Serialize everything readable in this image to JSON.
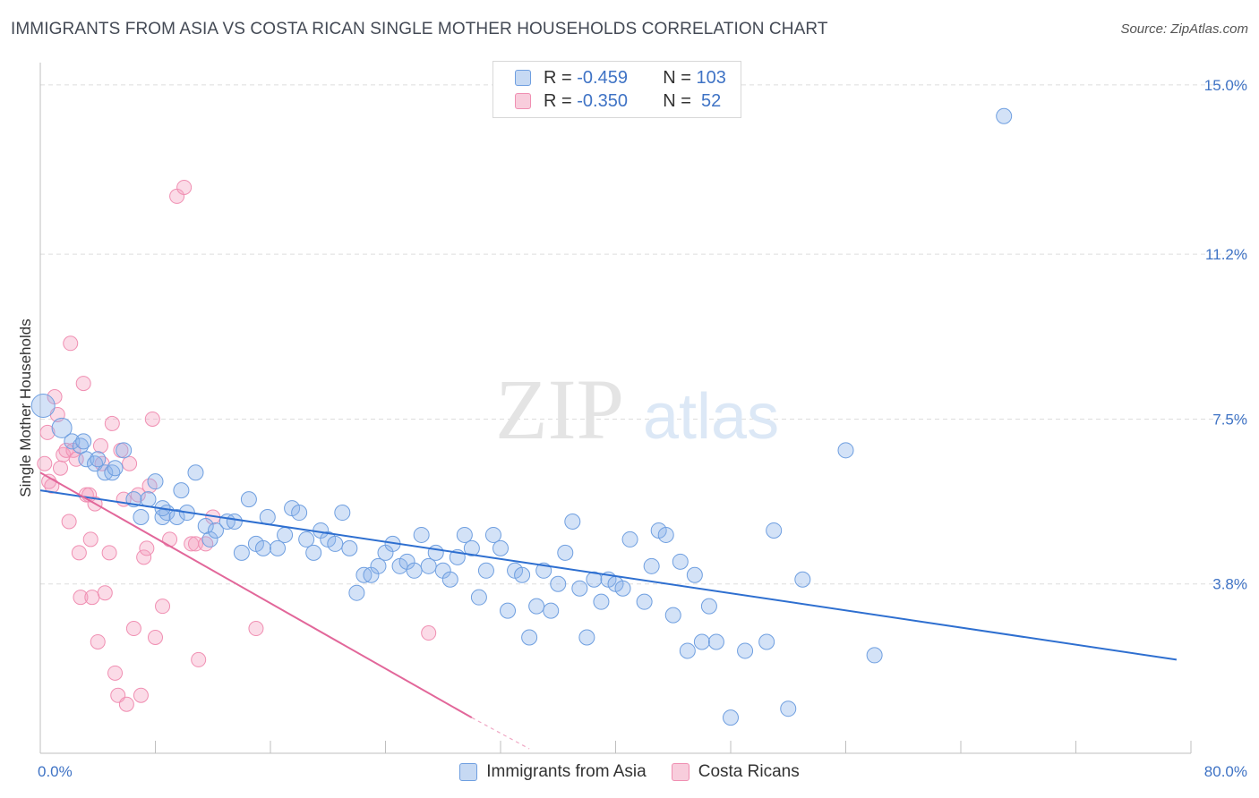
{
  "title": "IMMIGRANTS FROM ASIA VS COSTA RICAN SINGLE MOTHER HOUSEHOLDS CORRELATION CHART",
  "source": "Source: ZipAtlas.com",
  "watermark": {
    "zip": "ZIP",
    "atlas": "atlas"
  },
  "legend": {
    "rows": [
      {
        "r_label": "R = ",
        "r_value": "-0.459",
        "n_label": "N = ",
        "n_value": "103"
      },
      {
        "r_label": "R = ",
        "r_value": "-0.350",
        "n_label": "N = ",
        "n_value": " 52"
      }
    ]
  },
  "colors": {
    "blue": "#6f9fe0",
    "blue_line": "#2e6fd0",
    "pink": "#f08fb2",
    "pink_line": "#e2679a"
  },
  "chart_data": {
    "type": "scatter",
    "ylabel": "Single Mother Households",
    "xlim": [
      0,
      80
    ],
    "ylim": [
      0,
      15.5
    ],
    "x_tick_labels": [
      "0.0%",
      "80.0%"
    ],
    "y_ticks": [
      3.8,
      7.5,
      11.2,
      15.0
    ],
    "y_tick_labels": [
      "3.8%",
      "7.5%",
      "11.2%",
      "15.0%"
    ],
    "grid": true,
    "legend_position": "top-center",
    "series": [
      {
        "name": "Immigrants from Asia",
        "trend": [
          [
            0,
            5.9
          ],
          [
            79,
            2.1
          ]
        ],
        "points": [
          [
            0.2,
            7.8
          ],
          [
            1.5,
            7.3
          ],
          [
            2.2,
            7.0
          ],
          [
            2.8,
            6.9
          ],
          [
            3.2,
            6.6
          ],
          [
            3.8,
            6.5
          ],
          [
            4.5,
            6.3
          ],
          [
            5.0,
            6.3
          ],
          [
            5.2,
            6.4
          ],
          [
            5.8,
            6.8
          ],
          [
            6.5,
            5.7
          ],
          [
            7.0,
            5.3
          ],
          [
            7.5,
            5.7
          ],
          [
            8.0,
            6.1
          ],
          [
            8.5,
            5.3
          ],
          [
            8.8,
            5.4
          ],
          [
            9.5,
            5.3
          ],
          [
            9.8,
            5.9
          ],
          [
            10.2,
            5.4
          ],
          [
            10.8,
            6.3
          ],
          [
            11.5,
            5.1
          ],
          [
            11.8,
            4.8
          ],
          [
            12.2,
            5.0
          ],
          [
            13.0,
            5.2
          ],
          [
            13.5,
            5.2
          ],
          [
            14.0,
            4.5
          ],
          [
            14.5,
            5.7
          ],
          [
            15.0,
            4.7
          ],
          [
            15.5,
            4.6
          ],
          [
            15.8,
            5.3
          ],
          [
            16.5,
            4.6
          ],
          [
            17.0,
            4.9
          ],
          [
            17.5,
            5.5
          ],
          [
            18.0,
            5.4
          ],
          [
            18.5,
            4.8
          ],
          [
            19.0,
            4.5
          ],
          [
            19.5,
            5.0
          ],
          [
            20.0,
            4.8
          ],
          [
            20.5,
            4.7
          ],
          [
            21.0,
            5.4
          ],
          [
            21.5,
            4.6
          ],
          [
            22.0,
            3.6
          ],
          [
            22.5,
            4.0
          ],
          [
            23.0,
            4.0
          ],
          [
            23.5,
            4.2
          ],
          [
            24.0,
            4.5
          ],
          [
            24.5,
            4.7
          ],
          [
            25.0,
            4.2
          ],
          [
            25.5,
            4.3
          ],
          [
            26.0,
            4.1
          ],
          [
            26.5,
            4.9
          ],
          [
            27.0,
            4.2
          ],
          [
            27.5,
            4.5
          ],
          [
            28.0,
            4.1
          ],
          [
            28.5,
            3.9
          ],
          [
            29.0,
            4.4
          ],
          [
            29.5,
            4.9
          ],
          [
            30.0,
            4.6
          ],
          [
            30.5,
            3.5
          ],
          [
            31.0,
            4.1
          ],
          [
            31.5,
            4.9
          ],
          [
            32.0,
            4.6
          ],
          [
            32.5,
            3.2
          ],
          [
            33.0,
            4.1
          ],
          [
            33.5,
            4.0
          ],
          [
            34.0,
            2.6
          ],
          [
            34.5,
            3.3
          ],
          [
            35.0,
            4.1
          ],
          [
            35.5,
            3.2
          ],
          [
            36.0,
            3.8
          ],
          [
            36.5,
            4.5
          ],
          [
            37.0,
            5.2
          ],
          [
            37.5,
            3.7
          ],
          [
            38.0,
            2.6
          ],
          [
            38.5,
            3.9
          ],
          [
            39.0,
            3.4
          ],
          [
            39.5,
            3.9
          ],
          [
            40.0,
            3.8
          ],
          [
            40.5,
            3.7
          ],
          [
            41.0,
            4.8
          ],
          [
            42.0,
            3.4
          ],
          [
            42.5,
            4.2
          ],
          [
            43.0,
            5.0
          ],
          [
            43.5,
            4.9
          ],
          [
            44.0,
            3.1
          ],
          [
            44.5,
            4.3
          ],
          [
            45.0,
            2.3
          ],
          [
            45.5,
            4.0
          ],
          [
            46.0,
            2.5
          ],
          [
            46.5,
            3.3
          ],
          [
            47.0,
            2.5
          ],
          [
            48.0,
            0.8
          ],
          [
            49.0,
            2.3
          ],
          [
            50.5,
            2.5
          ],
          [
            51.0,
            5.0
          ],
          [
            52.0,
            1.0
          ],
          [
            53.0,
            3.9
          ],
          [
            56.0,
            6.8
          ],
          [
            58.0,
            2.2
          ],
          [
            67.0,
            14.3
          ],
          [
            3.0,
            7.0
          ],
          [
            4.0,
            6.6
          ],
          [
            8.5,
            5.5
          ]
        ]
      },
      {
        "name": "Costa Ricans",
        "trend": [
          [
            0,
            6.3
          ],
          [
            30,
            0.8
          ]
        ],
        "trend_dashed": [
          [
            30,
            0.8
          ],
          [
            34,
            0.1
          ]
        ],
        "points": [
          [
            0.3,
            6.5
          ],
          [
            0.5,
            7.2
          ],
          [
            0.6,
            6.1
          ],
          [
            0.8,
            6.0
          ],
          [
            1.0,
            8.0
          ],
          [
            1.2,
            7.6
          ],
          [
            1.4,
            6.4
          ],
          [
            1.6,
            6.7
          ],
          [
            1.8,
            6.8
          ],
          [
            2.0,
            5.2
          ],
          [
            2.1,
            9.2
          ],
          [
            2.3,
            6.8
          ],
          [
            2.5,
            6.6
          ],
          [
            2.7,
            4.5
          ],
          [
            2.8,
            3.5
          ],
          [
            3.0,
            8.3
          ],
          [
            3.2,
            5.8
          ],
          [
            3.4,
            5.8
          ],
          [
            3.5,
            4.8
          ],
          [
            3.6,
            3.5
          ],
          [
            3.8,
            5.6
          ],
          [
            4.0,
            2.5
          ],
          [
            4.2,
            6.9
          ],
          [
            4.5,
            3.6
          ],
          [
            4.8,
            4.5
          ],
          [
            5.0,
            7.4
          ],
          [
            5.2,
            1.8
          ],
          [
            5.4,
            1.3
          ],
          [
            5.6,
            6.8
          ],
          [
            5.8,
            5.7
          ],
          [
            6.0,
            1.1
          ],
          [
            6.2,
            6.5
          ],
          [
            6.5,
            2.8
          ],
          [
            6.8,
            5.8
          ],
          [
            7.0,
            1.3
          ],
          [
            7.2,
            4.4
          ],
          [
            7.4,
            4.6
          ],
          [
            7.6,
            6.0
          ],
          [
            7.8,
            7.5
          ],
          [
            8.0,
            2.6
          ],
          [
            8.5,
            3.3
          ],
          [
            9.0,
            4.8
          ],
          [
            9.5,
            12.5
          ],
          [
            10.0,
            12.7
          ],
          [
            10.5,
            4.7
          ],
          [
            10.8,
            4.7
          ],
          [
            11.0,
            2.1
          ],
          [
            11.5,
            4.7
          ],
          [
            12.0,
            5.3
          ],
          [
            15.0,
            2.8
          ],
          [
            27.0,
            2.7
          ],
          [
            4.3,
            6.5
          ]
        ]
      }
    ]
  }
}
